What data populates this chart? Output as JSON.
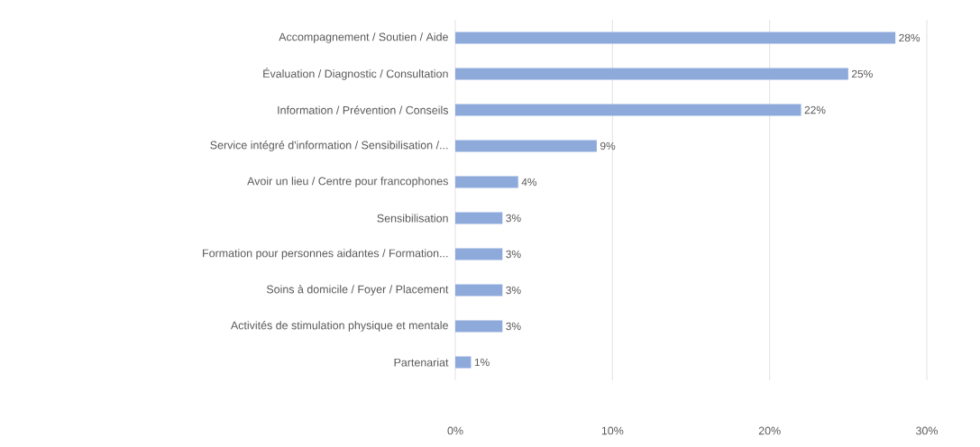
{
  "chart_data": {
    "type": "bar",
    "orientation": "horizontal",
    "categories": [
      "Accompagnement / Soutien / Aide",
      "Évaluation / Diagnostic / Consultation",
      "Information / Prévention / Conseils",
      "Service intégré d'information / Sensibilisation /...",
      "Avoir un lieu / Centre pour francophones",
      "Sensibilisation",
      "Formation pour personnes aidantes / Formation...",
      "Soins à domicile / Foyer / Placement",
      "Activités de stimulation physique et mentale",
      "Partenariat"
    ],
    "values": [
      28,
      25,
      22,
      9,
      4,
      3,
      3,
      3,
      3,
      1
    ],
    "value_labels": [
      "28%",
      "25%",
      "22%",
      "9%",
      "4%",
      "3%",
      "3%",
      "3%",
      "3%",
      "1%"
    ],
    "color": "#8eaadb",
    "xlim": [
      0,
      30
    ],
    "xticks": [
      {
        "value": 0,
        "label": "0%"
      },
      {
        "value": 10,
        "label": "10%"
      },
      {
        "value": 20,
        "label": "20%"
      },
      {
        "value": 30,
        "label": "30%"
      }
    ],
    "grid": "x"
  }
}
